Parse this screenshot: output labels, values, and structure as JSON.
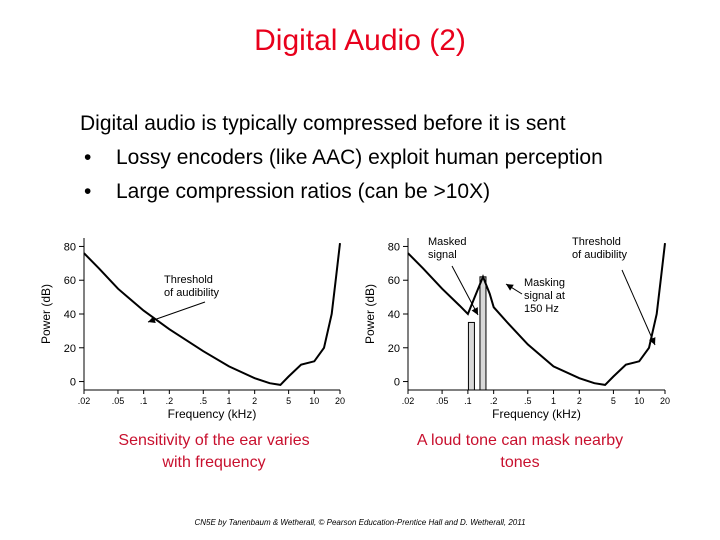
{
  "slide": {
    "title": "Digital Audio (2)",
    "intro": "Digital audio is typically compressed before it is sent",
    "bullets": [
      "Lossy encoders (like AAC) exploit human perception",
      "Large compression ratios (can be >10X)"
    ],
    "bullet_symbol": "•",
    "captions": [
      "Sensitivity of the ear varies with frequency",
      "A loud tone can mask nearby tones"
    ],
    "credit": "CN5E by Tanenbaum & Wetherall, © Pearson Education-Prentice Hall and D. Wetherall, 2011"
  },
  "colors": {
    "title": "#e8001c",
    "caption": "#c8102e",
    "curve": "#000000"
  },
  "chart_data": [
    {
      "type": "line",
      "xlabel": "Frequency (kHz)",
      "ylabel": "Power (dB)",
      "x_scale": "log",
      "x_ticks": [
        0.02,
        0.05,
        0.1,
        0.2,
        0.5,
        1,
        2,
        5,
        10,
        20
      ],
      "x_tick_labels": [
        ".02",
        ".05",
        ".1",
        ".2",
        ".5",
        "1",
        "2",
        "5",
        "10",
        "20"
      ],
      "y_ticks": [
        0,
        20,
        40,
        60,
        80
      ],
      "ylim": [
        -5,
        85
      ],
      "series": [
        {
          "x": [
            0.02,
            0.03,
            0.05,
            0.1,
            0.2,
            0.5,
            1,
            2,
            3,
            4,
            5,
            7,
            10,
            13,
            16,
            18,
            20
          ],
          "y": [
            76,
            67,
            55,
            42,
            31,
            18,
            9,
            2,
            -1,
            -2,
            3,
            10,
            12,
            20,
            40,
            62,
            82
          ]
        }
      ],
      "annotations": [
        {
          "text": [
            "Threshold",
            "of audibility"
          ]
        }
      ]
    },
    {
      "type": "line",
      "xlabel": "Frequency (kHz)",
      "ylabel": "Power (dB)",
      "x_scale": "log",
      "x_ticks": [
        0.02,
        0.05,
        0.1,
        0.2,
        0.5,
        1,
        2,
        5,
        10,
        20
      ],
      "x_tick_labels": [
        ".02",
        ".05",
        ".1",
        ".2",
        ".5",
        "1",
        "2",
        "5",
        "10",
        "20"
      ],
      "y_ticks": [
        0,
        20,
        40,
        60,
        80
      ],
      "ylim": [
        -5,
        85
      ],
      "series": [
        {
          "x": [
            0.02,
            0.03,
            0.05,
            0.08,
            0.1,
            0.12,
            0.15,
            0.18,
            0.2,
            0.3,
            0.5,
            1,
            2,
            3,
            4,
            5,
            7,
            10,
            13,
            16,
            18,
            20
          ],
          "y": [
            76,
            67,
            55,
            45,
            40,
            50,
            62,
            52,
            44,
            34,
            22,
            9,
            2,
            -1,
            -2,
            3,
            10,
            12,
            20,
            40,
            62,
            82
          ]
        }
      ],
      "bars": [
        {
          "x": 0.11,
          "value": 35,
          "label": "Masked signal"
        },
        {
          "x": 0.15,
          "value": 62,
          "label": "Masking signal at 150 Hz"
        }
      ],
      "annotations": [
        {
          "text": [
            "Masked",
            "signal"
          ]
        },
        {
          "text": [
            "Threshold",
            "of audibility"
          ]
        },
        {
          "text": [
            "Masking",
            "signal at",
            "150 Hz"
          ]
        }
      ]
    }
  ]
}
